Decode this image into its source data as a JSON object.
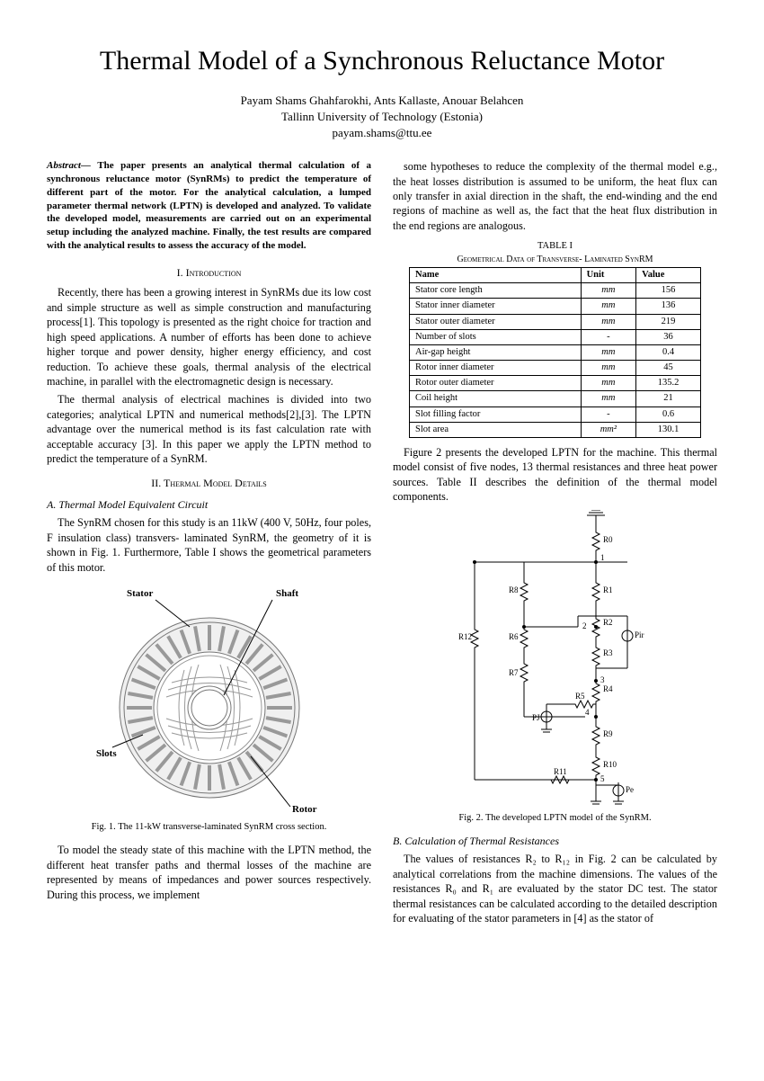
{
  "title": "Thermal Model of a Synchronous Reluctance Motor",
  "authors": "Payam Shams Ghahfarokhi, Ants Kallaste, Anouar Belahcen",
  "affiliation": "Tallinn University of Technology (Estonia)",
  "email": "payam.shams@ttu.ee",
  "abstract_lead": "Abstract—",
  "abstract_body": "The paper presents an analytical thermal calculation of a synchronous reluctance motor (SynRMs) to predict the temperature of different part of the motor. For the analytical calculation, a lumped parameter thermal network (LPTN) is developed and analyzed. To validate the developed model, measurements are carried out on an experimental setup including the analyzed machine. Finally, the test results are compared with the analytical results to assess the accuracy of the model.",
  "section1_title": "I.   Introduction",
  "intro_p1": "Recently, there has been a growing interest in SynRMs due its low cost and simple structure as well as simple construction and manufacturing process[1]. This topology is presented as the right choice for traction and high speed applications. A number of efforts has been done to achieve higher torque and power density, higher energy efficiency, and cost reduction. To achieve these goals, thermal analysis of the electrical machine, in parallel with the electromagnetic design is necessary.",
  "intro_p2": "The thermal analysis of electrical machines is divided into two categories; analytical LPTN and numerical methods[2],[3]. The LPTN advantage over the numerical method is its fast calculation rate with acceptable accuracy [3]. In this paper we apply the LPTN method to predict the temperature of a SynRM.",
  "section2_title": "II.   Thermal Model Details",
  "subsect_a": "A.  Thermal Model Equivalent Circuit",
  "tmd_p1": "The SynRM chosen for this study is an 11kW (400 V, 50Hz, four poles, F insulation class) transvers- laminated SynRM, the geometry of it is shown in Fig. 1. Furthermore, Table I shows the geometrical parameters of this motor.",
  "fig1_labels": {
    "stator": "Stator",
    "shaft": "Shaft",
    "slots": "Slots",
    "rotor": "Rotor"
  },
  "fig1_caption": "Fig. 1. The 11-kW transverse-laminated SynRM cross section.",
  "tmd_p2": "To model the steady state of this machine with the LPTN method, the different heat transfer paths and thermal losses of the machine are represented by means of impedances and power sources respectively. During this process, we implement",
  "col2_p1": "some hypotheses to reduce the complexity of the thermal model e.g., the heat losses distribution is assumed to be uniform, the heat flux can only transfer in axial direction in the shaft, the end-winding and the end regions of machine as well as, the fact that the heat flux distribution in the end regions are analogous.",
  "table1_title": "TABLE I",
  "table1_subtitle": "Geometrical Data of Transverse- Laminated SynRM",
  "table1": {
    "headers": [
      "Name",
      "Unit",
      "Value"
    ],
    "rows": [
      [
        "Stator core length",
        "mm",
        "156"
      ],
      [
        "Stator inner diameter",
        "mm",
        "136"
      ],
      [
        "Stator outer diameter",
        "mm",
        "219"
      ],
      [
        "Number of slots",
        "-",
        "36"
      ],
      [
        "Air-gap height",
        "mm",
        "0.4"
      ],
      [
        "Rotor inner diameter",
        "mm",
        "45"
      ],
      [
        "Rotor outer diameter",
        "mm",
        "135.2"
      ],
      [
        "Coil height",
        "mm",
        "21"
      ],
      [
        "Slot filling factor",
        "-",
        "0.6"
      ],
      [
        "Slot area",
        "mm²",
        "130.1"
      ]
    ]
  },
  "col2_p2": "Figure 2 presents the developed LPTN for the machine. This thermal model consist of five nodes, 13 thermal resistances and three heat power sources. Table II describes the definition of the thermal model components.",
  "fig2_labels": {
    "R0": "R0",
    "R1": "R1",
    "R2": "R2",
    "R3": "R3",
    "R4": "R4",
    "R5": "R5",
    "R6": "R6",
    "R7": "R7",
    "R8": "R8",
    "R9": "R9",
    "R10": "R10",
    "R11": "R11",
    "R12": "R12",
    "Pir": "Pir",
    "PJ": "PJ",
    "Pe": "Pe",
    "n1": "1",
    "n2": "2",
    "n3": "3",
    "n4": "4",
    "n5": "5"
  },
  "fig2_caption": "Fig. 2. The developed LPTN model of the SynRM.",
  "subsect_b": "B.  Calculation of Thermal Resistances",
  "col2_p3": "The values of resistances R₂ to R₁₂ in Fig. 2 can be calculated by analytical correlations from the machine dimensions. The values of the resistances R₀ and R₁ are evaluated by the stator DC test. The stator thermal resistances can be calculated according to the detailed description for evaluating of the stator parameters in [4] as the stator of"
}
